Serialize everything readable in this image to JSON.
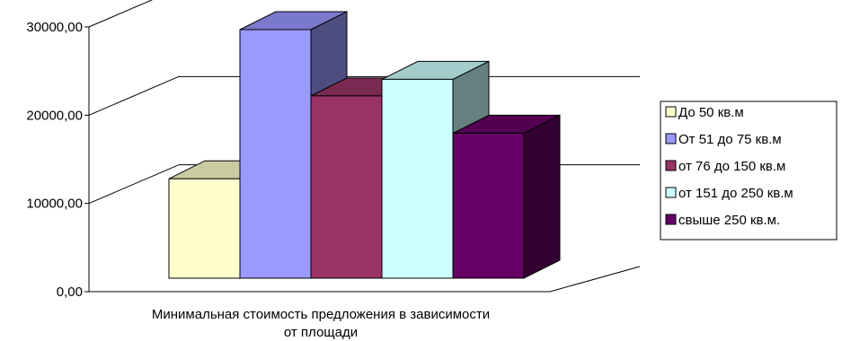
{
  "chart_data": {
    "type": "bar",
    "style": "3d-column",
    "categories": [
      "Минимальная стоимость предложения в зависимости от площади"
    ],
    "xlabel_lines": [
      "Минимальная стоимость предложения в зависимости",
      "от площади"
    ],
    "ylim": [
      0,
      30000
    ],
    "yticks": [
      "0,00",
      "10000,00",
      "20000,00",
      "30000,00"
    ],
    "grid": true,
    "legend_position": "right",
    "series": [
      {
        "name": "До 50 кв.м",
        "value": 12000,
        "color": "#FFFFCC"
      },
      {
        "name": "От 51 до 75 кв.м",
        "value": 30000,
        "color": "#9999FF"
      },
      {
        "name": "от 76 до 150 кв.м",
        "value": 22000,
        "color": "#993366"
      },
      {
        "name": "от 151 до 250 кв.м",
        "value": 24000,
        "color": "#CCFFFF"
      },
      {
        "name": "свыше 250 кв.м.",
        "value": 17500,
        "color": "#660066"
      }
    ]
  }
}
